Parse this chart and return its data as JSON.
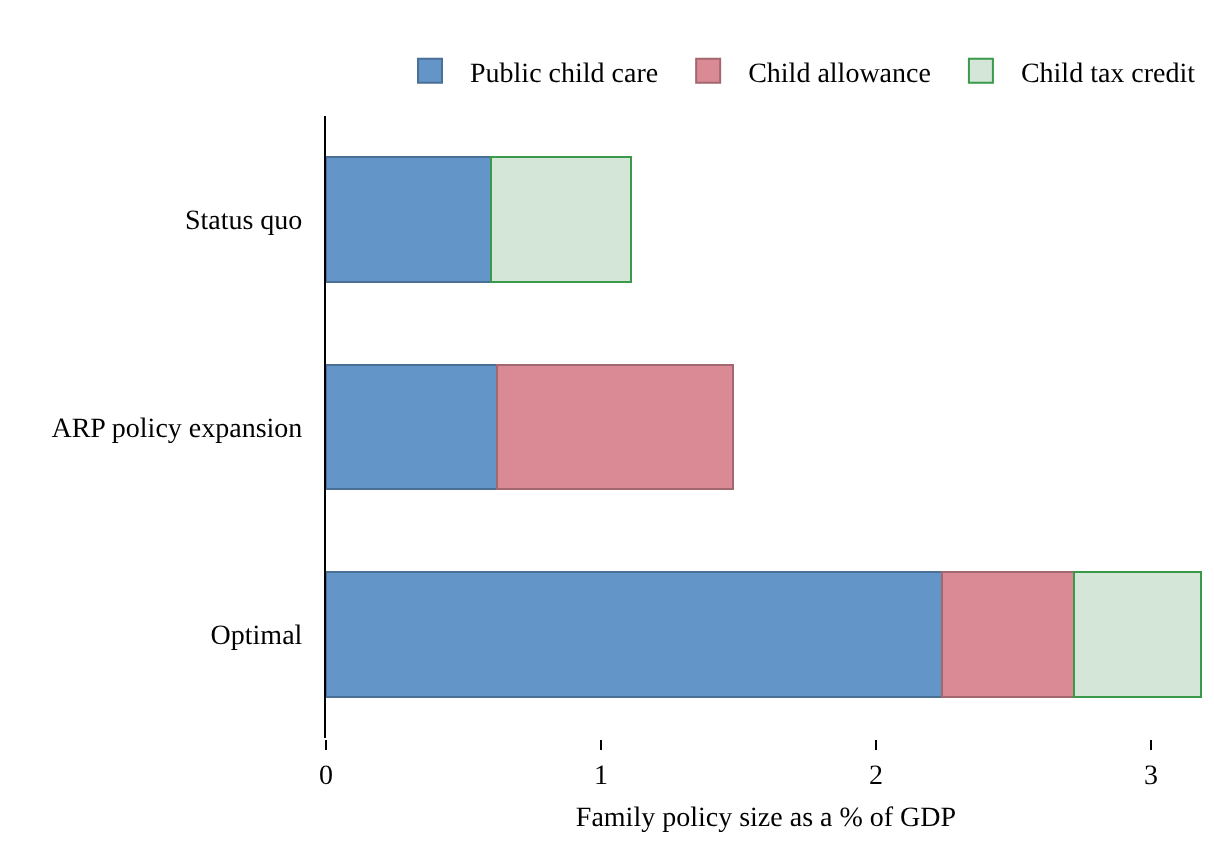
{
  "chart_data": {
    "type": "bar",
    "orientation": "horizontal",
    "stacked": true,
    "xlabel": "Family policy size as a % of GDP",
    "categories": [
      "Status quo",
      "ARP policy expansion",
      "Optimal"
    ],
    "series": [
      {
        "name": "Public child care",
        "color": "#6495c8",
        "values": [
          0.6,
          0.62,
          2.24
        ]
      },
      {
        "name": "Child allowance",
        "color": "#d98a94",
        "values": [
          null,
          0.86,
          0.48
        ]
      },
      {
        "name": "Child tax credit",
        "color": "#d4e6d8",
        "values": [
          0.51,
          null,
          0.46
        ]
      }
    ],
    "xlim": [
      0,
      3.2
    ],
    "xticks": [
      0,
      1,
      2,
      3
    ],
    "grid": false,
    "legend": "top right"
  }
}
